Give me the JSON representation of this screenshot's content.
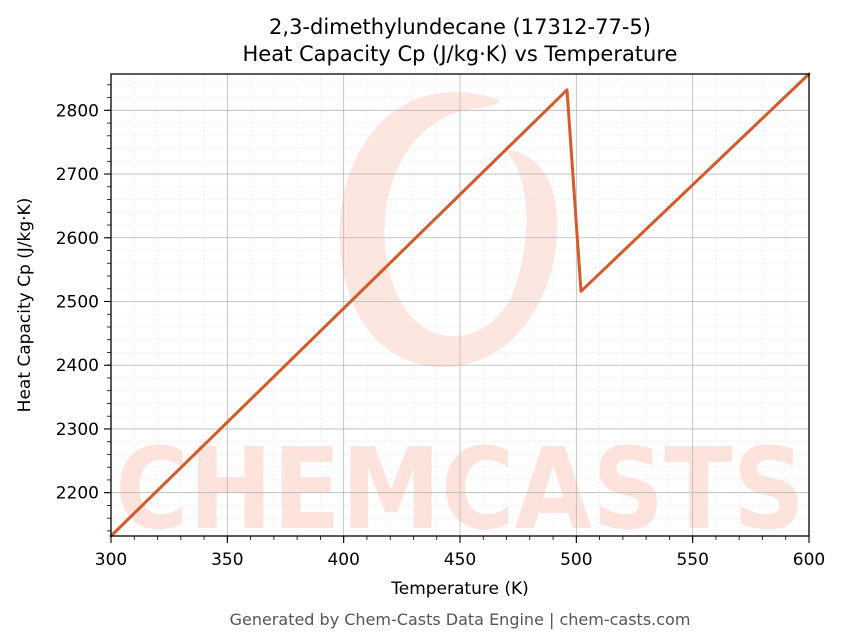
{
  "chart_data": {
    "type": "line",
    "title_line1": "2,3-dimethylundecane (17312-77-5)",
    "title_line2": "Heat Capacity Cp (J/kg·K) vs Temperature",
    "xlabel": "Temperature (K)",
    "ylabel": "Heat Capacity Cp (J/kg·K)",
    "xlim": [
      300,
      600
    ],
    "ylim": [
      2132,
      2857
    ],
    "x_ticks": [
      300,
      350,
      400,
      450,
      500,
      550,
      600
    ],
    "y_ticks": [
      2200,
      2300,
      2400,
      2500,
      2600,
      2700,
      2800
    ],
    "grid": true,
    "series": [
      {
        "color": "#d35a2a",
        "x": [
          300,
          496,
          502,
          600
        ],
        "y": [
          2132,
          2832,
          2516,
          2857
        ]
      }
    ]
  },
  "watermark": {
    "text": "CHEMCASTS",
    "color": "#fde3dc"
  },
  "footer": "Generated by Chem-Casts Data Engine | chem-casts.com"
}
